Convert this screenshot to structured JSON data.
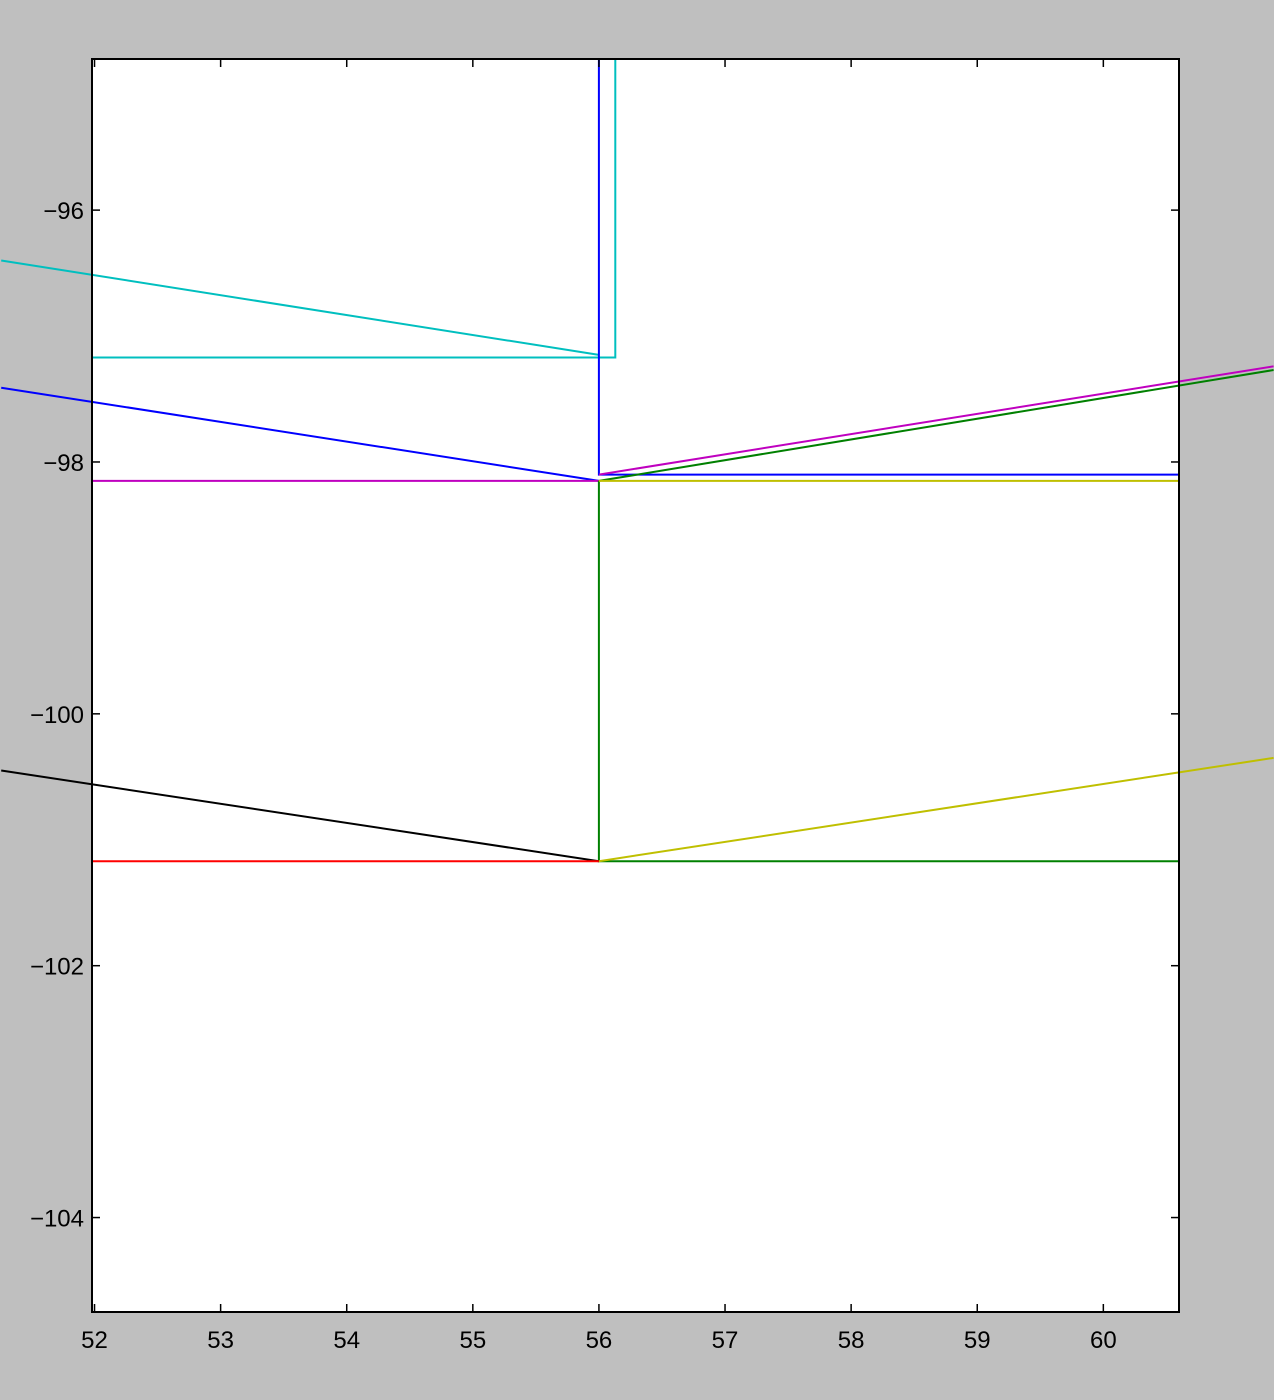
{
  "chart_data": {
    "type": "line",
    "title": "",
    "xlabel": "",
    "ylabel": "",
    "xlim": [
      51.98,
      60.6
    ],
    "ylim": [
      -104.75,
      -94.8
    ],
    "grid": false,
    "legend": "none",
    "background": "#bfbfbf",
    "plot_background": "#ffffff",
    "x_ticks": [
      52,
      53,
      54,
      55,
      56,
      57,
      58,
      59,
      60
    ],
    "y_ticks": [
      -96,
      -98,
      -100,
      -102,
      -104
    ],
    "x_tick_labels": [
      "52",
      "53",
      "54",
      "55",
      "56",
      "57",
      "58",
      "59",
      "60"
    ],
    "y_tick_labels": [
      "−96",
      "−98",
      "−100",
      "−102",
      "−104"
    ],
    "series": [
      {
        "color": "#00bfbf",
        "x": [
          51.26,
          56.0
        ],
        "y": [
          -96.4,
          -97.15
        ]
      },
      {
        "color": "#00bfbf",
        "x": [
          51.98,
          56.0,
          56.13,
          56.13
        ],
        "y": [
          -97.17,
          -97.17,
          -97.17,
          -94.8
        ]
      },
      {
        "color": "#0000ff",
        "x": [
          51.26,
          56.0
        ],
        "y": [
          -97.41,
          -98.15
        ]
      },
      {
        "color": "#0000ff",
        "x": [
          56.0,
          56.0,
          60.6
        ],
        "y": [
          -94.8,
          -98.1,
          -98.1
        ]
      },
      {
        "color": "#bf00bf",
        "x": [
          51.98,
          56.0
        ],
        "y": [
          -98.15,
          -98.15
        ]
      },
      {
        "color": "#bf00bf",
        "x": [
          56.0,
          61.35
        ],
        "y": [
          -98.1,
          -97.24
        ]
      },
      {
        "color": "#008000",
        "x": [
          56.0,
          61.35
        ],
        "y": [
          -98.15,
          -97.27
        ]
      },
      {
        "color": "#008000",
        "x": [
          56.0,
          56.0,
          60.6
        ],
        "y": [
          -98.15,
          -101.17,
          -101.17
        ]
      },
      {
        "color": "#bfbf00",
        "x": [
          56.0,
          60.6
        ],
        "y": [
          -98.15,
          -98.15
        ]
      },
      {
        "color": "#bfbf00",
        "x": [
          56.0,
          61.35
        ],
        "y": [
          -101.17,
          -100.35
        ]
      },
      {
        "color": "#000000",
        "x": [
          51.26,
          56.0
        ],
        "y": [
          -100.45,
          -101.17
        ]
      },
      {
        "color": "#ff0000",
        "x": [
          51.98,
          56.0
        ],
        "y": [
          -101.17,
          -101.17
        ]
      }
    ]
  }
}
